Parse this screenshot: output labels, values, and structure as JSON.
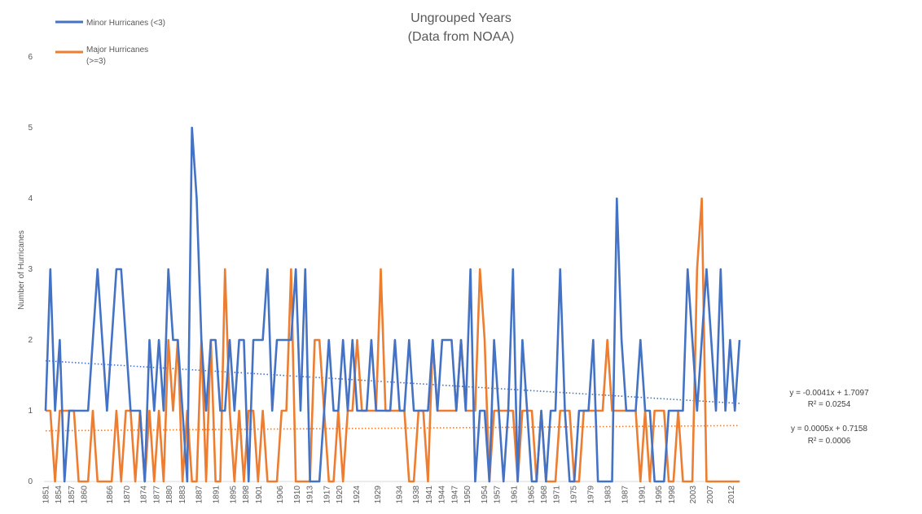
{
  "chart_data": {
    "type": "line",
    "title_line1": "Ungrouped Years",
    "title_line2": "(Data from NOAA)",
    "xlabel": "",
    "ylabel": "Number of Hurricanes",
    "ylim": [
      0,
      6
    ],
    "yticks": [
      0,
      1,
      2,
      3,
      4,
      5,
      6
    ],
    "xlim": [
      1851,
      2014
    ],
    "xticks": [
      1851,
      1854,
      1857,
      1860,
      1866,
      1870,
      1874,
      1877,
      1880,
      1883,
      1887,
      1891,
      1895,
      1898,
      1901,
      1906,
      1910,
      1913,
      1917,
      1920,
      1924,
      1929,
      1934,
      1938,
      1941,
      1944,
      1947,
      1950,
      1954,
      1957,
      1961,
      1965,
      1968,
      1971,
      1975,
      1979,
      1983,
      1987,
      1991,
      1995,
      1998,
      2003,
      2007,
      2012
    ],
    "grid": false,
    "legend_position": "top-left",
    "legend": {
      "minor_label": "Minor Hurricanes (<3)",
      "major_label_line1": "Major Hurricanes",
      "major_label_line2": "(>=3)"
    },
    "series": [
      {
        "name": "Minor Hurricanes (<3)",
        "color": "#4472C4",
        "values": [
          1,
          3,
          1,
          2,
          0,
          1,
          1,
          1,
          1,
          1,
          2,
          3,
          2,
          1,
          2,
          3,
          3,
          2,
          1,
          1,
          1,
          0,
          2,
          1,
          2,
          1,
          3,
          2,
          2,
          1,
          0,
          5,
          4,
          2,
          1,
          2,
          2,
          1,
          1,
          2,
          1,
          2,
          2,
          0,
          2,
          2,
          2,
          3,
          1,
          2,
          2,
          2,
          2,
          3,
          1,
          3,
          0,
          0,
          0,
          1,
          2,
          1,
          1,
          2,
          1,
          2,
          1,
          1,
          1,
          2,
          1,
          1,
          1,
          1,
          2,
          1,
          1,
          2,
          1,
          1,
          1,
          1,
          2,
          1,
          2,
          2,
          2,
          1,
          2,
          1,
          3,
          0,
          1,
          1,
          0,
          2,
          1,
          0,
          1,
          3,
          0,
          2,
          1,
          0,
          0,
          1,
          0,
          1,
          1,
          3,
          1,
          0,
          0,
          1,
          1,
          1,
          2,
          0,
          0,
          0,
          0,
          4,
          2,
          1,
          1,
          1,
          2,
          1,
          1,
          0,
          0,
          0,
          1,
          1,
          1,
          1,
          3,
          2,
          1,
          2,
          3,
          2,
          1,
          3,
          1,
          2,
          1,
          2
        ]
      },
      {
        "name": "Major Hurricanes (>=3)",
        "color": "#ED7D31",
        "values": [
          1,
          1,
          0,
          1,
          1,
          1,
          1,
          0,
          0,
          0,
          1,
          0,
          0,
          0,
          0,
          1,
          0,
          1,
          1,
          0,
          1,
          0,
          1,
          0,
          1,
          0,
          2,
          1,
          2,
          0,
          1,
          0,
          0,
          2,
          0,
          2,
          0,
          0,
          3,
          1,
          0,
          1,
          0,
          1,
          1,
          0,
          1,
          0,
          0,
          0,
          1,
          1,
          3,
          0,
          0,
          0,
          0,
          2,
          2,
          1,
          0,
          0,
          1,
          0,
          1,
          1,
          2,
          1,
          1,
          1,
          1,
          3,
          1,
          1,
          1,
          1,
          1,
          0,
          0,
          1,
          1,
          0,
          2,
          1,
          1,
          1,
          1,
          1,
          2,
          1,
          1,
          1,
          3,
          2,
          0,
          1,
          1,
          1,
          1,
          1,
          0,
          1,
          1,
          1,
          0,
          1,
          0,
          0,
          0,
          1,
          1,
          1,
          0,
          0,
          1,
          1,
          1,
          1,
          1,
          2,
          1,
          1,
          1,
          1,
          1,
          1,
          0,
          1,
          0,
          1,
          1,
          1,
          0,
          0,
          1,
          0,
          0,
          0,
          3,
          4,
          0,
          0,
          0,
          0,
          0,
          0,
          0,
          0
        ]
      }
    ],
    "trendlines": [
      {
        "equation": "y = -0.0041x + 1.7097",
        "r2": "R² = 0.0254",
        "slope": -0.0041,
        "intercept": 1.7097,
        "color": "#4472C4"
      },
      {
        "equation": "y = 0.0005x + 0.7158",
        "r2": "R² = 0.0006",
        "slope": 0.0005,
        "intercept": 0.7158,
        "color": "#ED7D31"
      }
    ]
  }
}
